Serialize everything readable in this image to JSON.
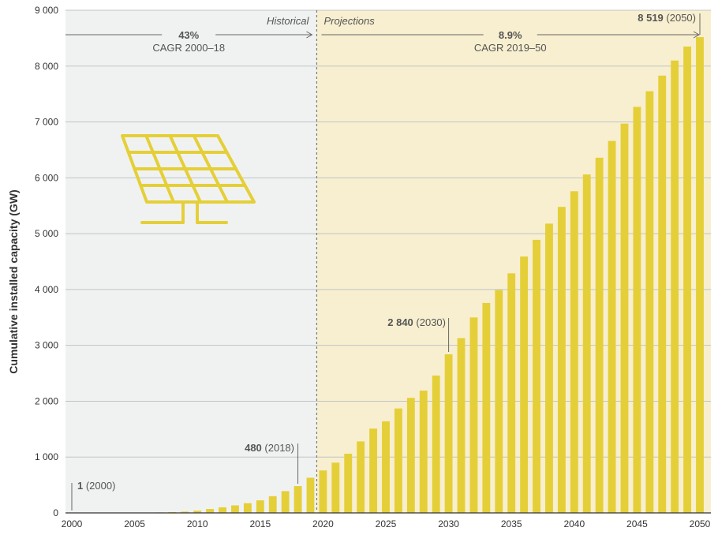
{
  "chart_data": {
    "type": "bar",
    "title": "",
    "ylabel": "Cumulative installed capacity (GW)",
    "xlabel": "",
    "ylim": [
      0,
      9000
    ],
    "yticks": [
      0,
      1000,
      2000,
      3000,
      4000,
      5000,
      6000,
      7000,
      8000,
      9000
    ],
    "ytick_labels": [
      "0",
      "1 000",
      "2 000",
      "3 000",
      "4 000",
      "5 000",
      "6 000",
      "7 000",
      "8 000",
      "9 000"
    ],
    "xticks": [
      2000,
      2005,
      2010,
      2015,
      2020,
      2025,
      2030,
      2035,
      2040,
      2045,
      2050
    ],
    "grid": "horizontal",
    "categories": [
      2000,
      2001,
      2002,
      2003,
      2004,
      2005,
      2006,
      2007,
      2008,
      2009,
      2010,
      2011,
      2012,
      2013,
      2014,
      2015,
      2016,
      2017,
      2018,
      2019,
      2020,
      2021,
      2022,
      2023,
      2024,
      2025,
      2026,
      2027,
      2028,
      2029,
      2030,
      2031,
      2032,
      2033,
      2034,
      2035,
      2036,
      2037,
      2038,
      2039,
      2040,
      2041,
      2042,
      2043,
      2044,
      2045,
      2046,
      2047,
      2048,
      2049,
      2050
    ],
    "values": [
      1,
      2,
      2,
      3,
      4,
      5,
      7,
      9,
      15,
      23,
      40,
      70,
      100,
      135,
      175,
      225,
      300,
      390,
      480,
      630,
      760,
      900,
      1060,
      1280,
      1510,
      1640,
      1870,
      2060,
      2190,
      2460,
      2840,
      3130,
      3500,
      3760,
      3990,
      4290,
      4590,
      4890,
      5180,
      5480,
      5760,
      6060,
      6360,
      6660,
      6970,
      7270,
      7550,
      7830,
      8100,
      8350,
      8519
    ],
    "colors": {
      "bar": "#E5CF38",
      "historical_bg": "#F0F2F2",
      "projection_bg": "#F8EFD0",
      "grid": "#BFC4C4",
      "divider": "#7A7A7A"
    },
    "regions": {
      "historical_label": "Historical",
      "projection_label": "Projections",
      "divider_x": 2019.5
    },
    "cagr": [
      {
        "value": "43%",
        "label": "CAGR 2000–18",
        "from": 2000,
        "to": 2019.5
      },
      {
        "value": "8.9%",
        "label": "CAGR 2019–50",
        "from": 2019.5,
        "to": 2050
      }
    ],
    "annotations": [
      {
        "year": 2000,
        "bold": "1",
        "text": "(2000)"
      },
      {
        "year": 2018,
        "bold": "480",
        "text": "(2018)"
      },
      {
        "year": 2030,
        "bold": "2 840",
        "text": "(2030)"
      },
      {
        "year": 2050,
        "bold": "8 519",
        "text": "(2050)"
      }
    ],
    "icon": "solar-panel-icon"
  }
}
